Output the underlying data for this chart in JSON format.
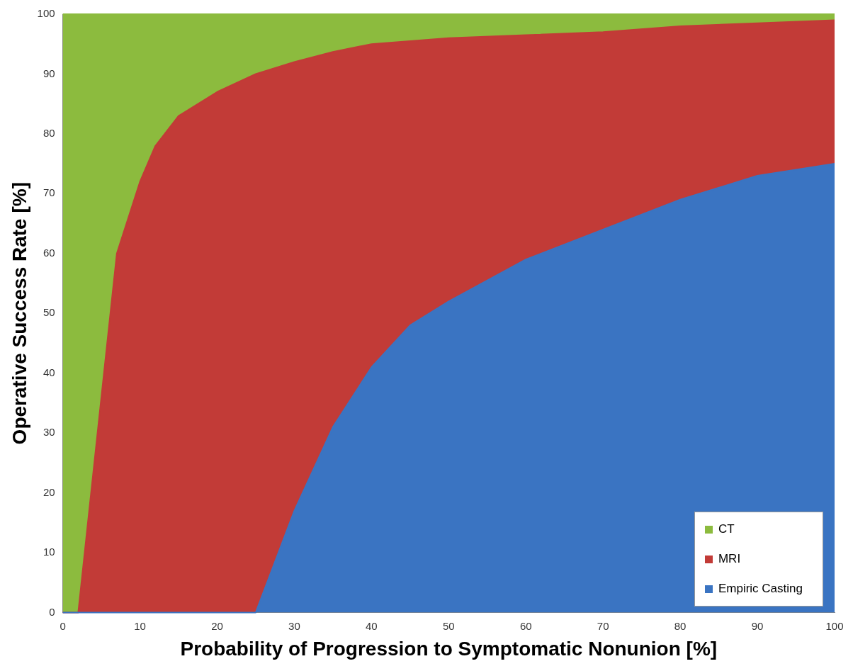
{
  "chart_data": {
    "type": "area",
    "xlabel": "Probability of Progression to Symptomatic Nonunion [%]",
    "ylabel": "Operative Success Rate [%]",
    "xlim": [
      0,
      100
    ],
    "ylim": [
      0,
      100
    ],
    "xticks": [
      0,
      10,
      20,
      30,
      40,
      50,
      60,
      70,
      80,
      90,
      100
    ],
    "yticks": [
      0,
      10,
      20,
      30,
      40,
      50,
      60,
      70,
      80,
      90,
      100
    ],
    "grid": false,
    "legend": "bottom right",
    "marker": "none",
    "series": [
      {
        "name": "CT",
        "color": "#8cbb3e",
        "x": [
          0,
          2,
          7,
          10,
          12,
          15,
          20,
          25,
          30,
          35,
          40,
          45,
          50,
          60,
          70,
          80,
          90,
          100
        ],
        "values": [
          100,
          100,
          100,
          100,
          100,
          100,
          100,
          100,
          100,
          100,
          100,
          100,
          100,
          100,
          100,
          100,
          100,
          100
        ]
      },
      {
        "name": "MRI",
        "color": "#c23b37",
        "x": [
          0,
          2,
          7,
          10,
          12,
          15,
          20,
          25,
          30,
          35,
          40,
          45,
          50,
          60,
          70,
          80,
          90,
          100
        ],
        "values": [
          0,
          0,
          60,
          72,
          78,
          83,
          87,
          90,
          92,
          93.7,
          95,
          95.5,
          96,
          96.5,
          97,
          98,
          98.5,
          99
        ]
      },
      {
        "name": "Empiric Casting",
        "color": "#3a74c2",
        "x": [
          0,
          25,
          30,
          35,
          40,
          45,
          50,
          60,
          70,
          80,
          90,
          100
        ],
        "values": [
          0,
          0,
          17,
          31,
          41,
          48,
          52,
          59,
          64,
          69,
          73,
          75
        ]
      }
    ]
  }
}
